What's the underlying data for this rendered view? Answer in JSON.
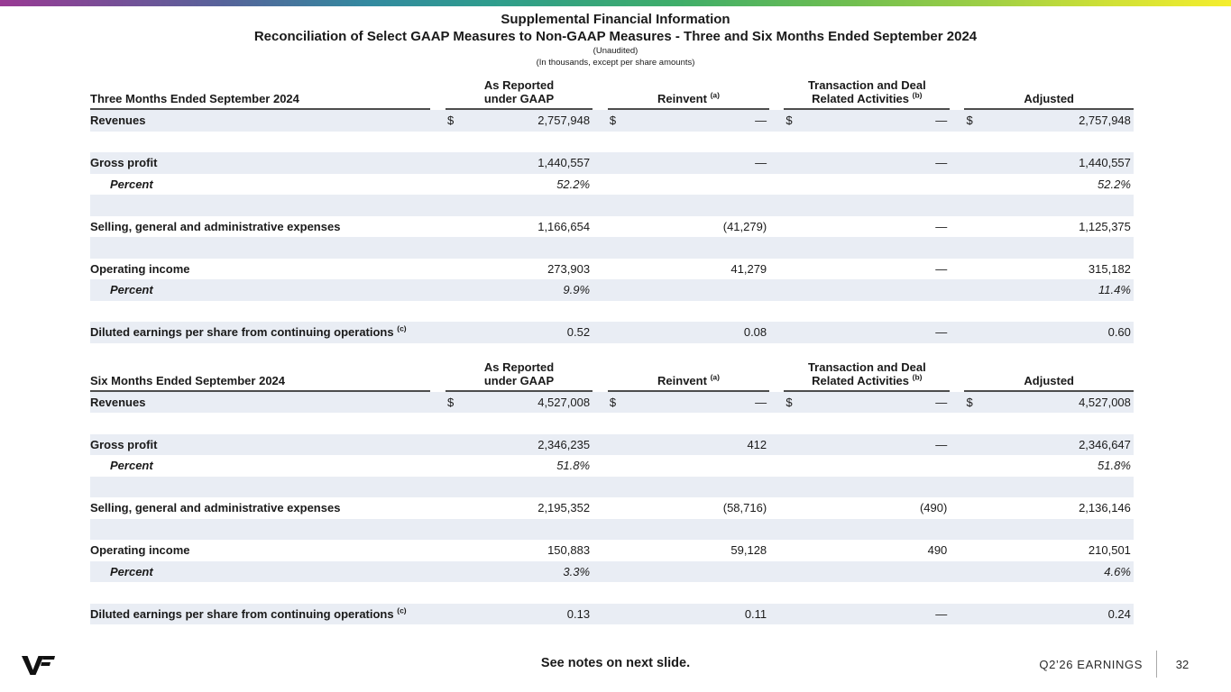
{
  "header": {
    "title": "Supplemental Financial Information",
    "subtitle": "Reconciliation of Select GAAP Measures to Non-GAAP Measures - Three and Six Months Ended September 2024",
    "note1": "(Unaudited)",
    "note2": "(In thousands, except per share amounts)"
  },
  "columns": {
    "as_reported": "As Reported\nunder GAAP",
    "reinvent": "Reinvent",
    "reinvent_sup": "(a)",
    "tdra": "Transaction and Deal\nRelated Activities",
    "tdra_sup": "(b)",
    "adjusted": "Adjusted"
  },
  "tables": [
    {
      "period_label": "Three Months Ended September 2024",
      "rows": [
        {
          "label": "Revenues",
          "shaded": true,
          "currency": true,
          "values": [
            "2,757,948",
            "—",
            "—",
            "2,757,948"
          ]
        },
        {
          "blank": true,
          "shaded": false
        },
        {
          "label": "Gross profit",
          "shaded": true,
          "values": [
            "1,440,557",
            "—",
            "—",
            "1,440,557"
          ]
        },
        {
          "label": "Percent",
          "italic": true,
          "shaded": false,
          "values": [
            "52.2%",
            "",
            "",
            "52.2%"
          ]
        },
        {
          "blank": true,
          "shaded": true
        },
        {
          "label": "Selling, general and administrative expenses",
          "shaded": false,
          "values": [
            "1,166,654",
            "(41,279)",
            "—",
            "1,125,375"
          ]
        },
        {
          "blank": true,
          "shaded": true
        },
        {
          "label": "Operating income",
          "shaded": false,
          "values": [
            "273,903",
            "41,279",
            "—",
            "315,182"
          ]
        },
        {
          "label": "Percent",
          "italic": true,
          "shaded": true,
          "values": [
            "9.9%",
            "",
            "",
            "11.4%"
          ]
        },
        {
          "blank": true,
          "shaded": false
        },
        {
          "label": "Diluted earnings per share from continuing operations",
          "label_sup": "(c)",
          "shaded": true,
          "values": [
            "0.52",
            "0.08",
            "—",
            "0.60"
          ]
        }
      ]
    },
    {
      "period_label": "Six Months Ended September 2024",
      "rows": [
        {
          "label": "Revenues",
          "shaded": true,
          "currency": true,
          "values": [
            "4,527,008",
            "—",
            "—",
            "4,527,008"
          ]
        },
        {
          "blank": true,
          "shaded": false
        },
        {
          "label": "Gross profit",
          "shaded": true,
          "values": [
            "2,346,235",
            "412",
            "—",
            "2,346,647"
          ]
        },
        {
          "label": "Percent",
          "italic": true,
          "shaded": false,
          "values": [
            "51.8%",
            "",
            "",
            "51.8%"
          ]
        },
        {
          "blank": true,
          "shaded": true
        },
        {
          "label": "Selling, general and administrative expenses",
          "shaded": false,
          "values": [
            "2,195,352",
            "(58,716)",
            "(490)",
            "2,136,146"
          ]
        },
        {
          "blank": true,
          "shaded": true
        },
        {
          "label": "Operating income",
          "shaded": false,
          "values": [
            "150,883",
            "59,128",
            "490",
            "210,501"
          ]
        },
        {
          "label": "Percent",
          "italic": true,
          "shaded": true,
          "values": [
            "3.3%",
            "",
            "",
            "4.6%"
          ]
        },
        {
          "blank": true,
          "shaded": false
        },
        {
          "label": "Diluted earnings per share from continuing operations",
          "label_sup": "(c)",
          "shaded": true,
          "values": [
            "0.13",
            "0.11",
            "—",
            "0.24"
          ]
        }
      ]
    }
  ],
  "currency_symbol": "$",
  "footer": {
    "see_notes": "See notes on next slide.",
    "earnings_label": "Q2’26 EARNINGS",
    "page_number": "32",
    "logo_alt": "VF"
  },
  "colors": {
    "row_shade": "#e9edf4",
    "rule": "#4d4d4d",
    "gradient": [
      "#993a94",
      "#2f9d8d",
      "#3fae6a",
      "#f5ee2e"
    ]
  }
}
